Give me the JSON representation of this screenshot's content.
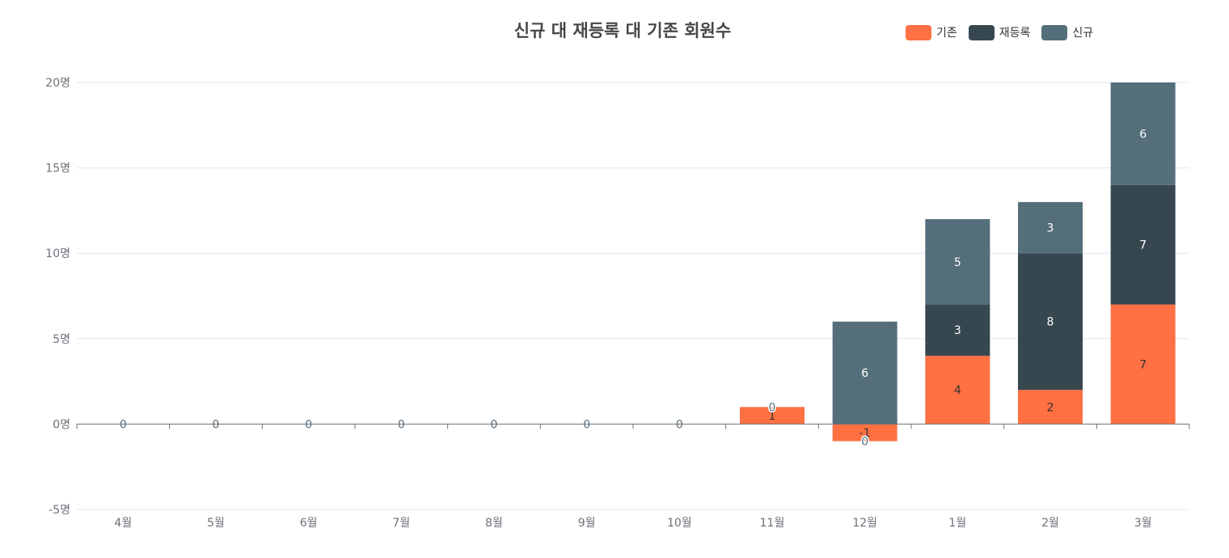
{
  "chart_data": {
    "type": "bar",
    "stacked": true,
    "title": "신규 대 재등록 대 기존 회원수",
    "categories": [
      "4월",
      "5월",
      "6월",
      "7월",
      "8월",
      "9월",
      "10월",
      "11월",
      "12월",
      "1월",
      "2월",
      "3월"
    ],
    "series": [
      {
        "name": "기존",
        "color": "#ff7043",
        "values": [
          0,
          0,
          0,
          0,
          0,
          0,
          0,
          1,
          -1,
          4,
          2,
          7
        ]
      },
      {
        "name": "재등록",
        "color": "#37474f",
        "values": [
          0,
          0,
          0,
          0,
          0,
          0,
          0,
          0,
          0,
          3,
          8,
          7
        ]
      },
      {
        "name": "신규",
        "color": "#546e7a",
        "values": [
          0,
          0,
          0,
          0,
          0,
          0,
          0,
          0,
          6,
          5,
          3,
          6
        ]
      }
    ],
    "y_ticks": [
      "-5명",
      "0명",
      "5명",
      "10명",
      "15명",
      "20명"
    ],
    "ylim": [
      -5,
      20
    ],
    "grid": true,
    "legend_position": "top-right"
  }
}
